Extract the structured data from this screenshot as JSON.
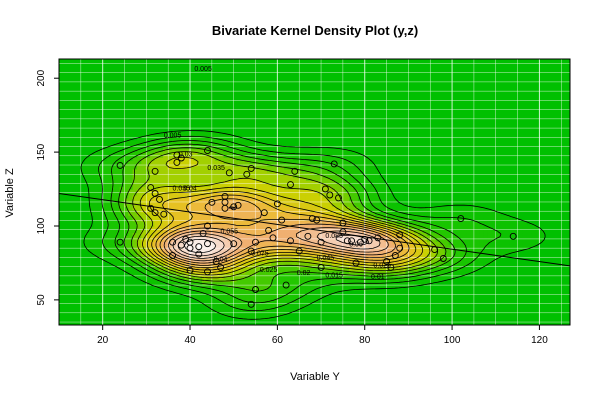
{
  "chart_data": {
    "type": "contour",
    "title": "Bivariate Kernel Density Plot (y,z)",
    "xlabel": "Variable Y",
    "ylabel": "Variable Z",
    "xlim": [
      10,
      127
    ],
    "ylim": [
      33,
      213
    ],
    "xticks": [
      20,
      40,
      60,
      80,
      100,
      120
    ],
    "yticks": [
      50,
      100,
      150,
      200
    ],
    "grid": true,
    "colors": {
      "low": "#00c000",
      "mid": "#e0c000",
      "high": "#f0d8c8",
      "peak": "#ffffff",
      "grid": "#ffffff",
      "contour": "#000000",
      "points": "#000000"
    },
    "points": [
      [
        24,
        141
      ],
      [
        24,
        89
      ],
      [
        31,
        126
      ],
      [
        31,
        112
      ],
      [
        32,
        137
      ],
      [
        32,
        109
      ],
      [
        32,
        122
      ],
      [
        33,
        118
      ],
      [
        34,
        108
      ],
      [
        36,
        80
      ],
      [
        36,
        89
      ],
      [
        37,
        148
      ],
      [
        37,
        143
      ],
      [
        38,
        87
      ],
      [
        38,
        146
      ],
      [
        39,
        91
      ],
      [
        40,
        89
      ],
      [
        40,
        85
      ],
      [
        40,
        70
      ],
      [
        42,
        86
      ],
      [
        42,
        81
      ],
      [
        43,
        95
      ],
      [
        44,
        151
      ],
      [
        44,
        100
      ],
      [
        44,
        88
      ],
      [
        44,
        69
      ],
      [
        45,
        116
      ],
      [
        46,
        76
      ],
      [
        47,
        72
      ],
      [
        48,
        120
      ],
      [
        48,
        116
      ],
      [
        48,
        112
      ],
      [
        49,
        136
      ],
      [
        50,
        88
      ],
      [
        50,
        113
      ],
      [
        51,
        114
      ],
      [
        53,
        135
      ],
      [
        54,
        139
      ],
      [
        54,
        83
      ],
      [
        54,
        47
      ],
      [
        55,
        89
      ],
      [
        55,
        57
      ],
      [
        57,
        109
      ],
      [
        58,
        97
      ],
      [
        59,
        92
      ],
      [
        60,
        115
      ],
      [
        61,
        104
      ],
      [
        62,
        60
      ],
      [
        63,
        90
      ],
      [
        63,
        128
      ],
      [
        64,
        137
      ],
      [
        65,
        83
      ],
      [
        67,
        93
      ],
      [
        68,
        105
      ],
      [
        69,
        104
      ],
      [
        70,
        89
      ],
      [
        70,
        72
      ],
      [
        71,
        125
      ],
      [
        72,
        121
      ],
      [
        73,
        142
      ],
      [
        74,
        119
      ],
      [
        75,
        96
      ],
      [
        75,
        102
      ],
      [
        76,
        90
      ],
      [
        77,
        90
      ],
      [
        78,
        75
      ],
      [
        79,
        89
      ],
      [
        80,
        91
      ],
      [
        81,
        90
      ],
      [
        83,
        92
      ],
      [
        85,
        76
      ],
      [
        86,
        72
      ],
      [
        87,
        80
      ],
      [
        88,
        94
      ],
      [
        88,
        85
      ],
      [
        96,
        84
      ],
      [
        98,
        78
      ],
      [
        102,
        105
      ],
      [
        114,
        93
      ]
    ],
    "contour_labels": [
      {
        "text": "0.005",
        "x": 43,
        "y": 205
      },
      {
        "text": "0.005",
        "x": 36,
        "y": 160
      },
      {
        "text": "0.03",
        "x": 39,
        "y": 147
      },
      {
        "text": "0.035",
        "x": 46,
        "y": 138
      },
      {
        "text": "0.035",
        "x": 38,
        "y": 124
      },
      {
        "text": "0.04",
        "x": 40,
        "y": 124
      },
      {
        "text": "0.055",
        "x": 49,
        "y": 95
      },
      {
        "text": "0.085",
        "x": 73,
        "y": 92
      },
      {
        "text": "0.06",
        "x": 78,
        "y": 86
      },
      {
        "text": "0.075",
        "x": 56,
        "y": 80
      },
      {
        "text": "0.04",
        "x": 47,
        "y": 76
      },
      {
        "text": "0.025",
        "x": 58,
        "y": 69
      },
      {
        "text": "0.02",
        "x": 66,
        "y": 67
      },
      {
        "text": "0.045",
        "x": 71,
        "y": 77
      },
      {
        "text": "0.015",
        "x": 73,
        "y": 65
      },
      {
        "text": "0.025",
        "x": 84,
        "y": 72
      },
      {
        "text": "0.01",
        "x": 83,
        "y": 64
      }
    ],
    "regression_line": {
      "x": [
        10,
        127
      ],
      "y": [
        122,
        73
      ]
    }
  }
}
